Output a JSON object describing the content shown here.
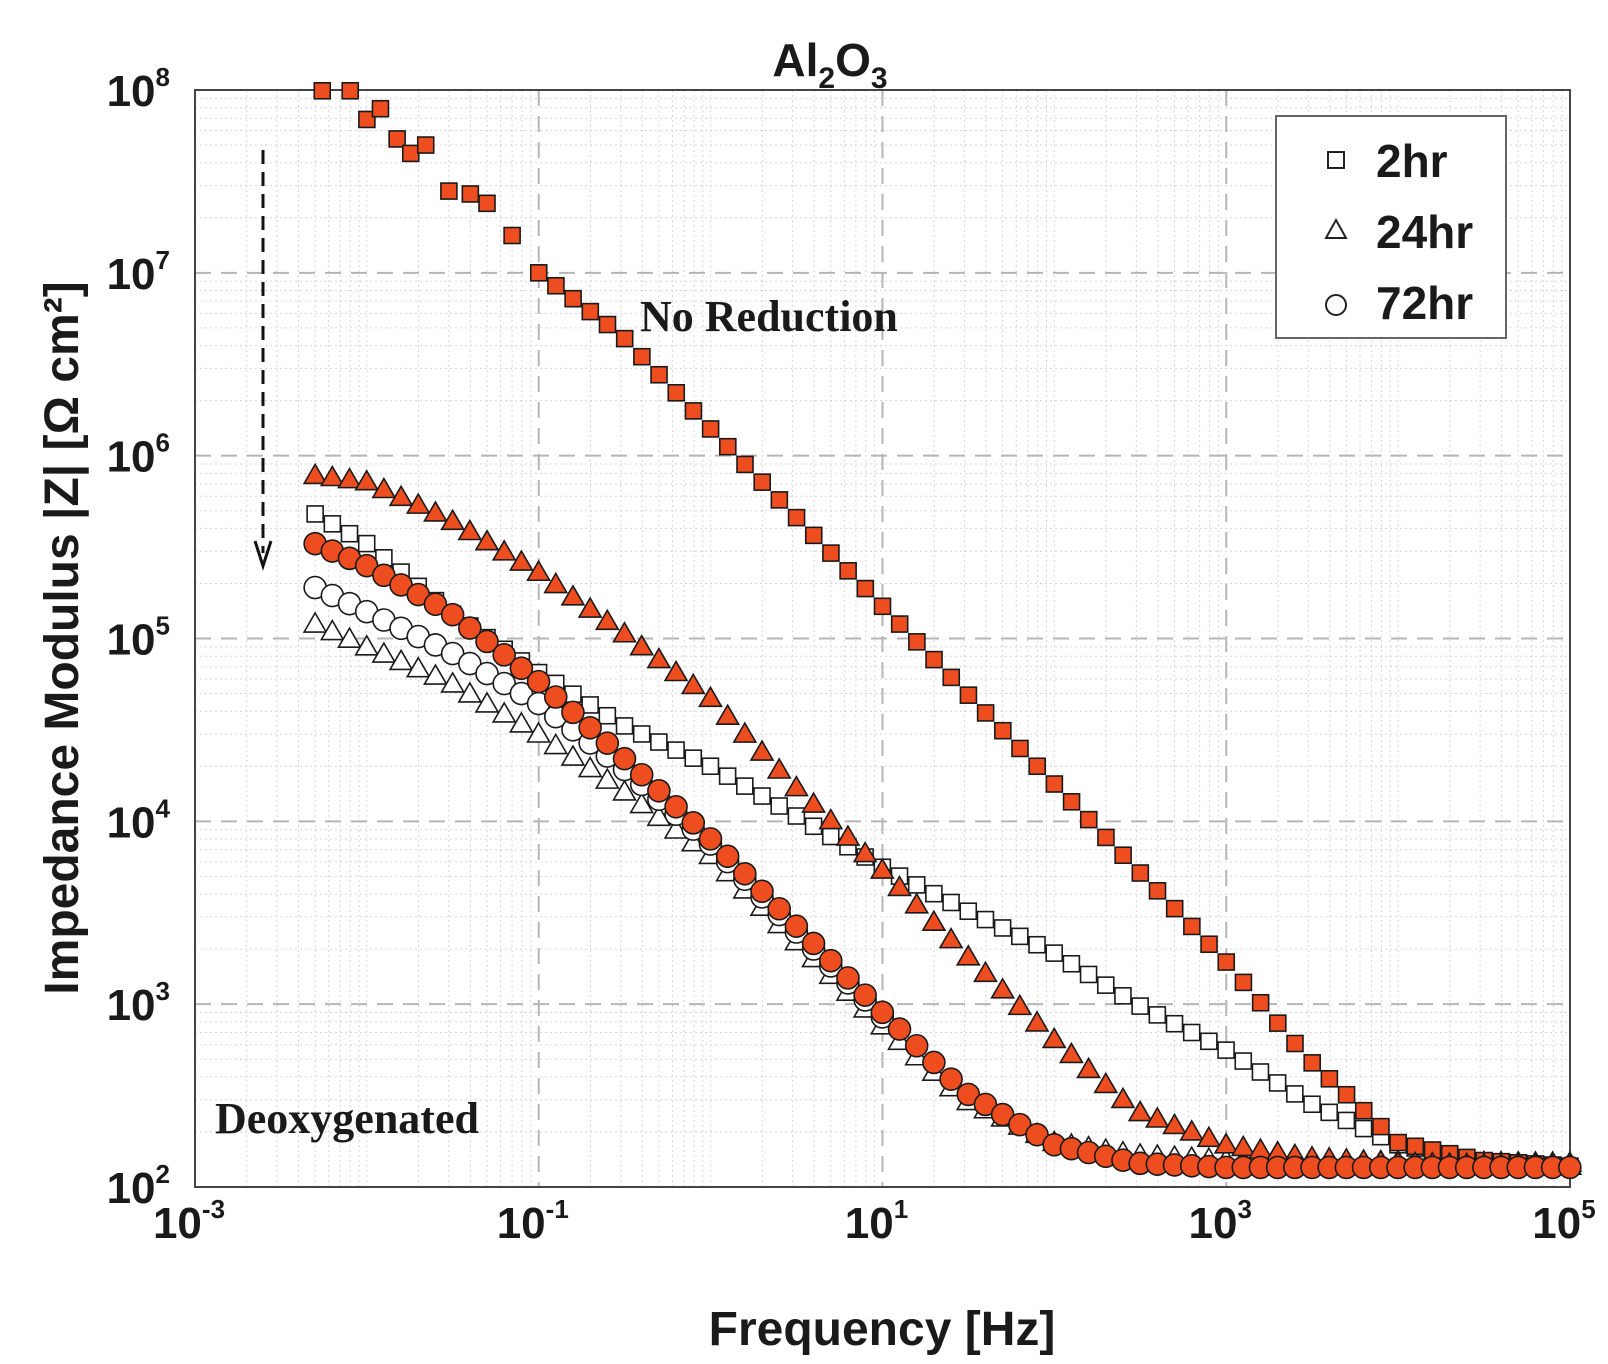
{
  "chart_data": {
    "type": "scatter",
    "title": "Al2O3",
    "title_base": "Al",
    "title_sub1": "2",
    "title_mid": "O",
    "title_sub2": "3",
    "xlabel": "Frequency [Hz]",
    "ylabel": "Impedance Modulus |Z| [Ω cm²]",
    "x_scale": "log",
    "y_scale": "log",
    "xlim": [
      0.001,
      100000
    ],
    "ylim": [
      100,
      100000000
    ],
    "x_ticks": [
      {
        "base": "10",
        "exp": "-3"
      },
      {
        "base": "10",
        "exp": "-1"
      },
      {
        "base": "10",
        "exp": "1"
      },
      {
        "base": "10",
        "exp": "3"
      },
      {
        "base": "10",
        "exp": "5"
      }
    ],
    "y_ticks": [
      {
        "base": "10",
        "exp": "2"
      },
      {
        "base": "10",
        "exp": "3"
      },
      {
        "base": "10",
        "exp": "4"
      },
      {
        "base": "10",
        "exp": "5"
      },
      {
        "base": "10",
        "exp": "6"
      },
      {
        "base": "10",
        "exp": "7"
      },
      {
        "base": "10",
        "exp": "8"
      }
    ],
    "grid": true,
    "legend": {
      "position": "top-right",
      "entries": [
        {
          "marker": "square",
          "label": "2hr"
        },
        {
          "marker": "triangle",
          "label": "24hr"
        },
        {
          "marker": "circle",
          "label": "72hr"
        }
      ]
    },
    "annotations": {
      "no_reduction": "No Reduction",
      "deoxygenated": "Deoxygenated",
      "arrow": "downward dashed arrow indicating decrease"
    },
    "conditions": [
      {
        "name": "No Reduction",
        "fill": "#ee4e1f"
      },
      {
        "name": "Deoxygenated",
        "fill": "#ffffff"
      }
    ],
    "series": [
      {
        "name": "2hr No Reduction",
        "marker": "square",
        "condition": "No Reduction",
        "fmin": 0.005,
        "fmax": 100000,
        "z_anchors": [
          [
            0.0055,
            99000000
          ],
          [
            0.008,
            99000000
          ],
          [
            0.01,
            69000000
          ],
          [
            0.012,
            79000000
          ],
          [
            0.015,
            54000000
          ],
          [
            0.018,
            45000000
          ],
          [
            0.022,
            50000000
          ],
          [
            0.03,
            28000000
          ],
          [
            0.04,
            27000000
          ],
          [
            0.05,
            24000000
          ],
          [
            0.07,
            16000000
          ],
          [
            0.1,
            10000000
          ],
          [
            0.3,
            4600000
          ],
          [
            1,
            1400000
          ],
          [
            10,
            150000
          ],
          [
            100,
            16000
          ],
          [
            1000,
            1700
          ],
          [
            3000,
            500
          ],
          [
            10000,
            175
          ],
          [
            30000,
            140
          ],
          [
            100000,
            130
          ]
        ]
      },
      {
        "name": "24hr No Reduction",
        "marker": "triangle",
        "condition": "No Reduction",
        "fmin": 0.005,
        "fmax": 100000,
        "z_anchors": [
          [
            0.005,
            780000
          ],
          [
            0.01,
            720000
          ],
          [
            0.03,
            450000
          ],
          [
            0.1,
            230000
          ],
          [
            0.3,
            110000
          ],
          [
            1,
            47000
          ],
          [
            3,
            16000
          ],
          [
            10,
            5400
          ],
          [
            30,
            1900
          ],
          [
            100,
            640
          ],
          [
            300,
            260
          ],
          [
            1000,
            170
          ],
          [
            3000,
            145
          ],
          [
            10000,
            135
          ],
          [
            100000,
            130
          ]
        ]
      },
      {
        "name": "72hr No Reduction",
        "marker": "circle",
        "condition": "No Reduction",
        "fmin": 0.005,
        "fmax": 100000,
        "z_anchors": [
          [
            0.005,
            330000
          ],
          [
            0.01,
            250000
          ],
          [
            0.03,
            140000
          ],
          [
            0.1,
            58000
          ],
          [
            0.3,
            23000
          ],
          [
            1,
            8000
          ],
          [
            3,
            2800
          ],
          [
            10,
            900
          ],
          [
            30,
            330
          ],
          [
            100,
            170
          ],
          [
            300,
            135
          ],
          [
            1000,
            128
          ],
          [
            100000,
            128
          ]
        ]
      },
      {
        "name": "2hr Deoxygenated",
        "marker": "square",
        "condition": "Deoxygenated",
        "fmin": 0.005,
        "fmax": 30000,
        "z_anchors": [
          [
            0.005,
            480000
          ],
          [
            0.01,
            330000
          ],
          [
            0.03,
            140000
          ],
          [
            0.1,
            65000
          ],
          [
            0.3,
            34000
          ],
          [
            1,
            20000
          ],
          [
            3,
            11000
          ],
          [
            10,
            5600
          ],
          [
            30,
            3300
          ],
          [
            100,
            1900
          ],
          [
            300,
            1000
          ],
          [
            1000,
            560
          ],
          [
            3000,
            290
          ],
          [
            10000,
            170
          ],
          [
            30000,
            140
          ]
        ]
      },
      {
        "name": "24hr Deoxygenated",
        "marker": "triangle",
        "condition": "Deoxygenated",
        "fmin": 0.005,
        "fmax": 100000,
        "z_anchors": [
          [
            0.005,
            120000
          ],
          [
            0.01,
            90000
          ],
          [
            0.03,
            58000
          ],
          [
            0.1,
            30000
          ],
          [
            0.3,
            15000
          ],
          [
            1,
            6500
          ],
          [
            3,
            2300
          ],
          [
            10,
            760
          ],
          [
            30,
            300
          ],
          [
            100,
            175
          ],
          [
            300,
            150
          ],
          [
            1000,
            140
          ],
          [
            100000,
            135
          ]
        ]
      },
      {
        "name": "72hr Deoxygenated",
        "marker": "circle",
        "condition": "Deoxygenated",
        "fmin": 0.005,
        "fmax": 10,
        "z_anchors": [
          [
            0.005,
            190000
          ],
          [
            0.01,
            140000
          ],
          [
            0.03,
            85000
          ],
          [
            0.1,
            44000
          ],
          [
            0.3,
            20000
          ],
          [
            1,
            7500
          ],
          [
            3,
            2600
          ],
          [
            10,
            850
          ]
        ]
      }
    ]
  }
}
